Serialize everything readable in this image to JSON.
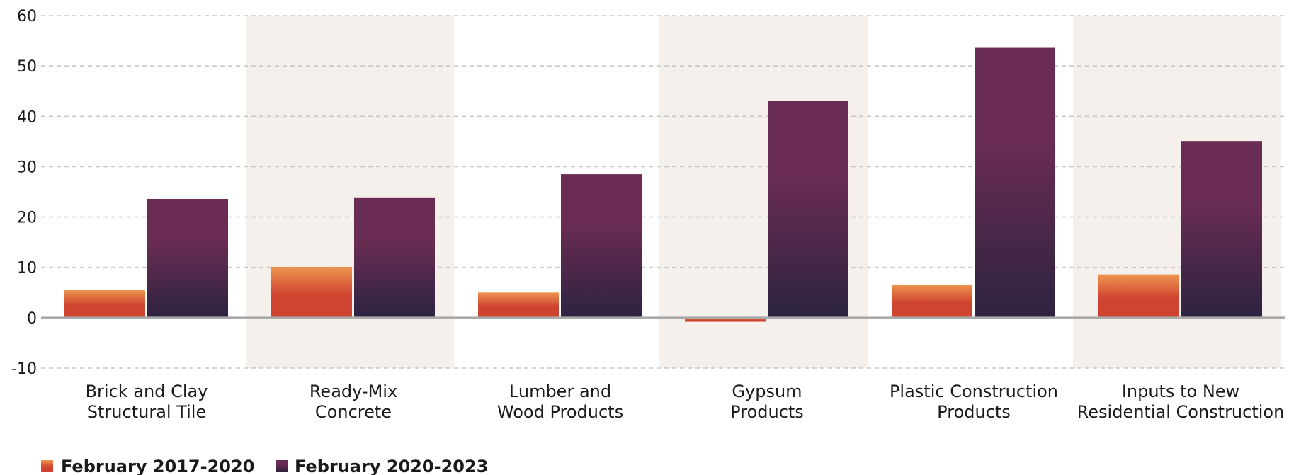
{
  "chart_data": {
    "type": "bar",
    "categories": [
      [
        "Brick and Clay",
        "Structural Tile"
      ],
      [
        "Ready-Mix",
        "Concrete"
      ],
      [
        "Lumber and",
        "Wood Products"
      ],
      [
        "Gypsum",
        "Products"
      ],
      [
        "Plastic Construction",
        "Products"
      ],
      [
        "Inputs to New",
        "Residential Construction"
      ]
    ],
    "series": [
      {
        "name": "February 2017-2020",
        "values": [
          5.5,
          10.1,
          5.0,
          -0.8,
          6.6,
          8.6
        ]
      },
      {
        "name": "February 2020-2023",
        "values": [
          23.6,
          23.9,
          28.5,
          43.1,
          53.6,
          35.1
        ]
      }
    ],
    "ylim": [
      -10,
      60
    ],
    "yticks": [
      60,
      50,
      40,
      30,
      20,
      10,
      0,
      -10
    ],
    "grid": true,
    "shaded_categories": [
      1,
      3,
      5
    ],
    "legend_position": "bottom-left",
    "colors": {
      "series1_top": "#ee9550",
      "series1_bottom": "#cf4431",
      "series2_top": "#6a2c52",
      "series2_bottom": "#2c2340",
      "shade": "#f6f0ec",
      "grid": "#c8c8c8",
      "zero_line": "#a9a9a9"
    }
  }
}
